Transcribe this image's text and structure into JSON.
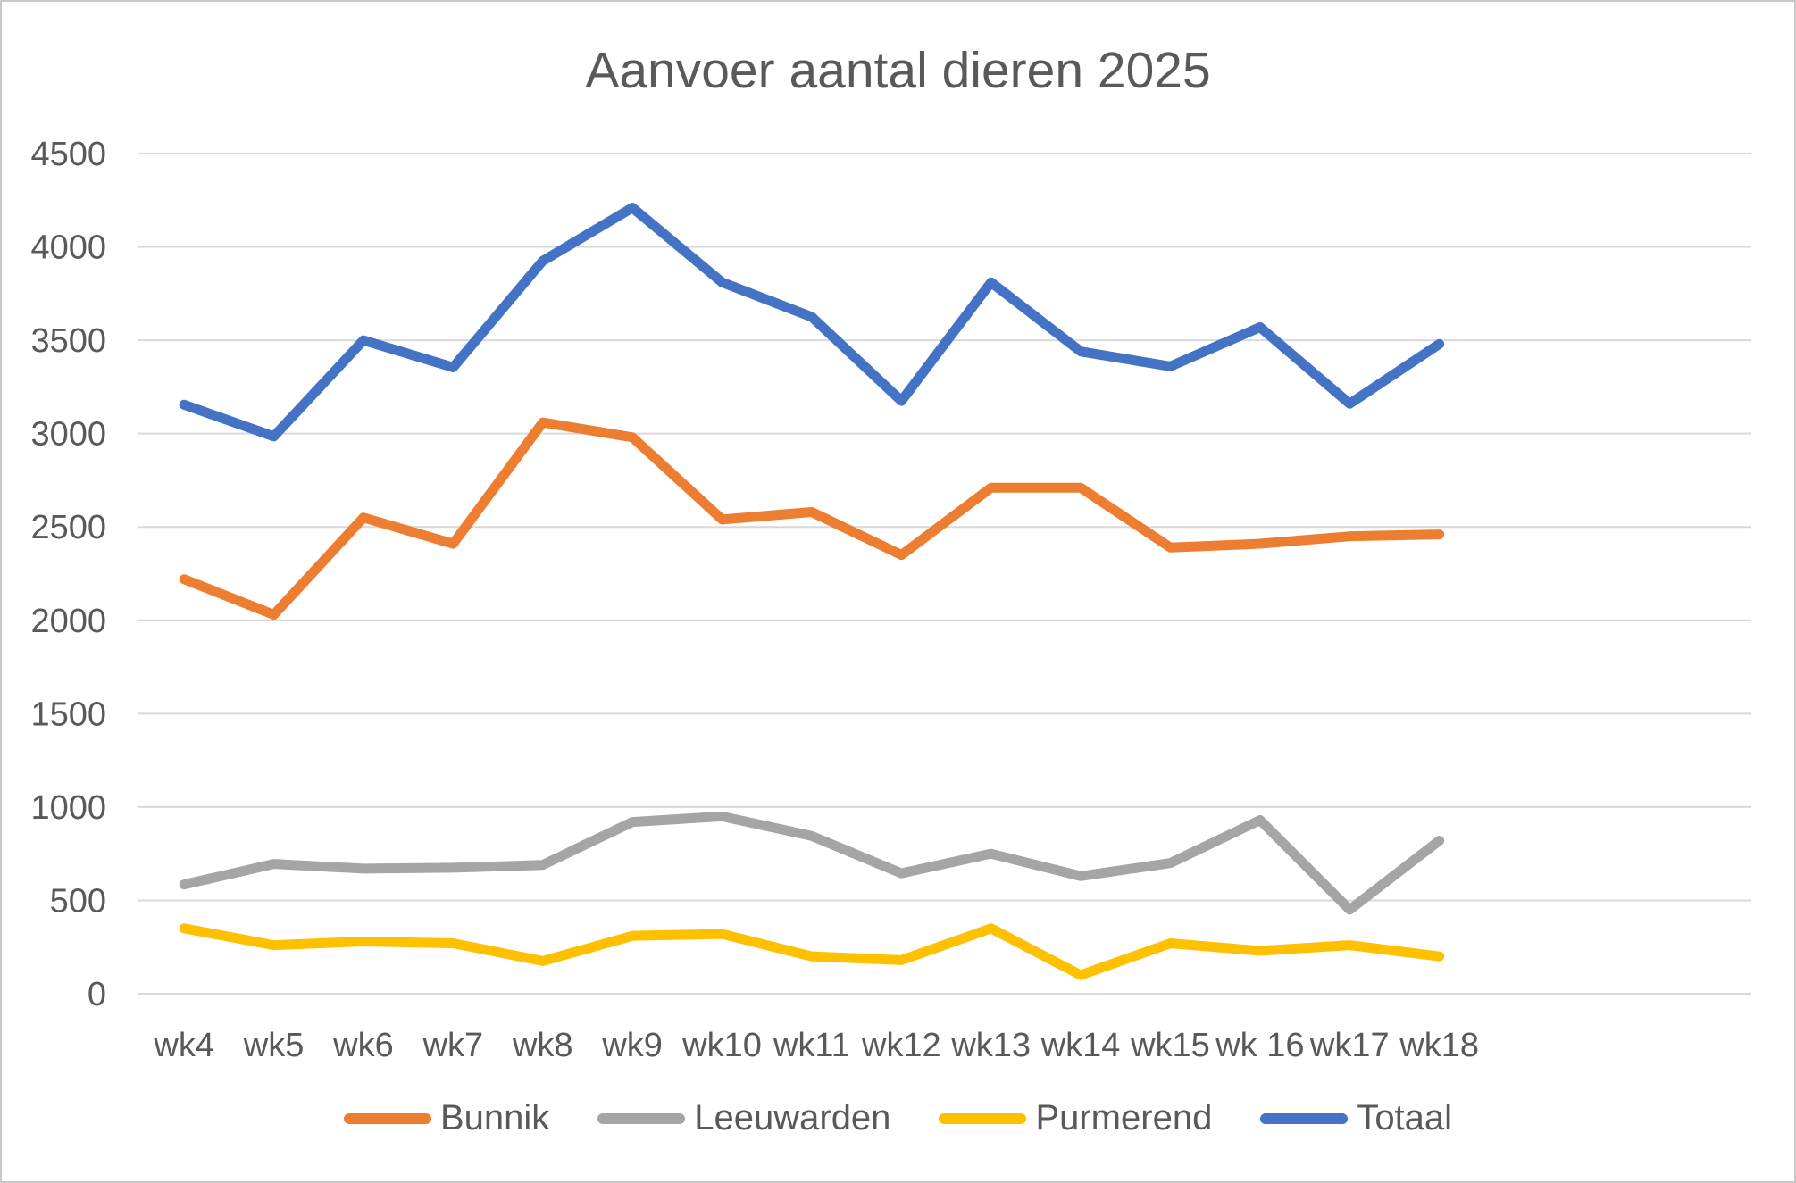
{
  "page": {
    "background": "#ffffff",
    "border_color": "#c9c9c9",
    "text_color": "#595959"
  },
  "chart_data": {
    "type": "line",
    "title": "Aanvoer aantal dieren 2025",
    "categories": [
      "wk4",
      "wk5",
      "wk6",
      "wk7",
      "wk8",
      "wk9",
      "wk10",
      "wk11",
      "wk12",
      "wk13",
      "wk14",
      "wk15",
      "wk 16",
      "wk17",
      "wk18"
    ],
    "series": [
      {
        "name": "Bunnik",
        "color": "#ED7D31",
        "values": [
          2220,
          2030,
          2550,
          2410,
          3060,
          2980,
          2540,
          2580,
          2350,
          2710,
          2710,
          2390,
          2410,
          2450,
          2460
        ]
      },
      {
        "name": "Leeuwarden",
        "color": "#A5A5A5",
        "values": [
          585,
          695,
          670,
          675,
          690,
          920,
          950,
          845,
          645,
          750,
          630,
          700,
          930,
          450,
          820
        ]
      },
      {
        "name": "Purmerend",
        "color": "#FFC000",
        "values": [
          350,
          260,
          280,
          270,
          175,
          310,
          320,
          200,
          180,
          350,
          100,
          270,
          230,
          260,
          200
        ]
      },
      {
        "name": "Totaal",
        "color": "#4472C4",
        "values": [
          3155,
          2985,
          3500,
          3355,
          3925,
          4210,
          3810,
          3625,
          3175,
          3810,
          3440,
          3360,
          3570,
          3160,
          3480
        ]
      }
    ],
    "xlabel": "",
    "ylabel": "",
    "ylim": [
      0,
      4500
    ],
    "yticks": [
      0,
      500,
      1000,
      1500,
      2000,
      2500,
      3000,
      3500,
      4000,
      4500
    ],
    "grid": true,
    "gridline_color": "#D9D9D9",
    "line_width": 11,
    "legend_position": "bottom",
    "x_axis_trailing_empty_slots": 3
  }
}
